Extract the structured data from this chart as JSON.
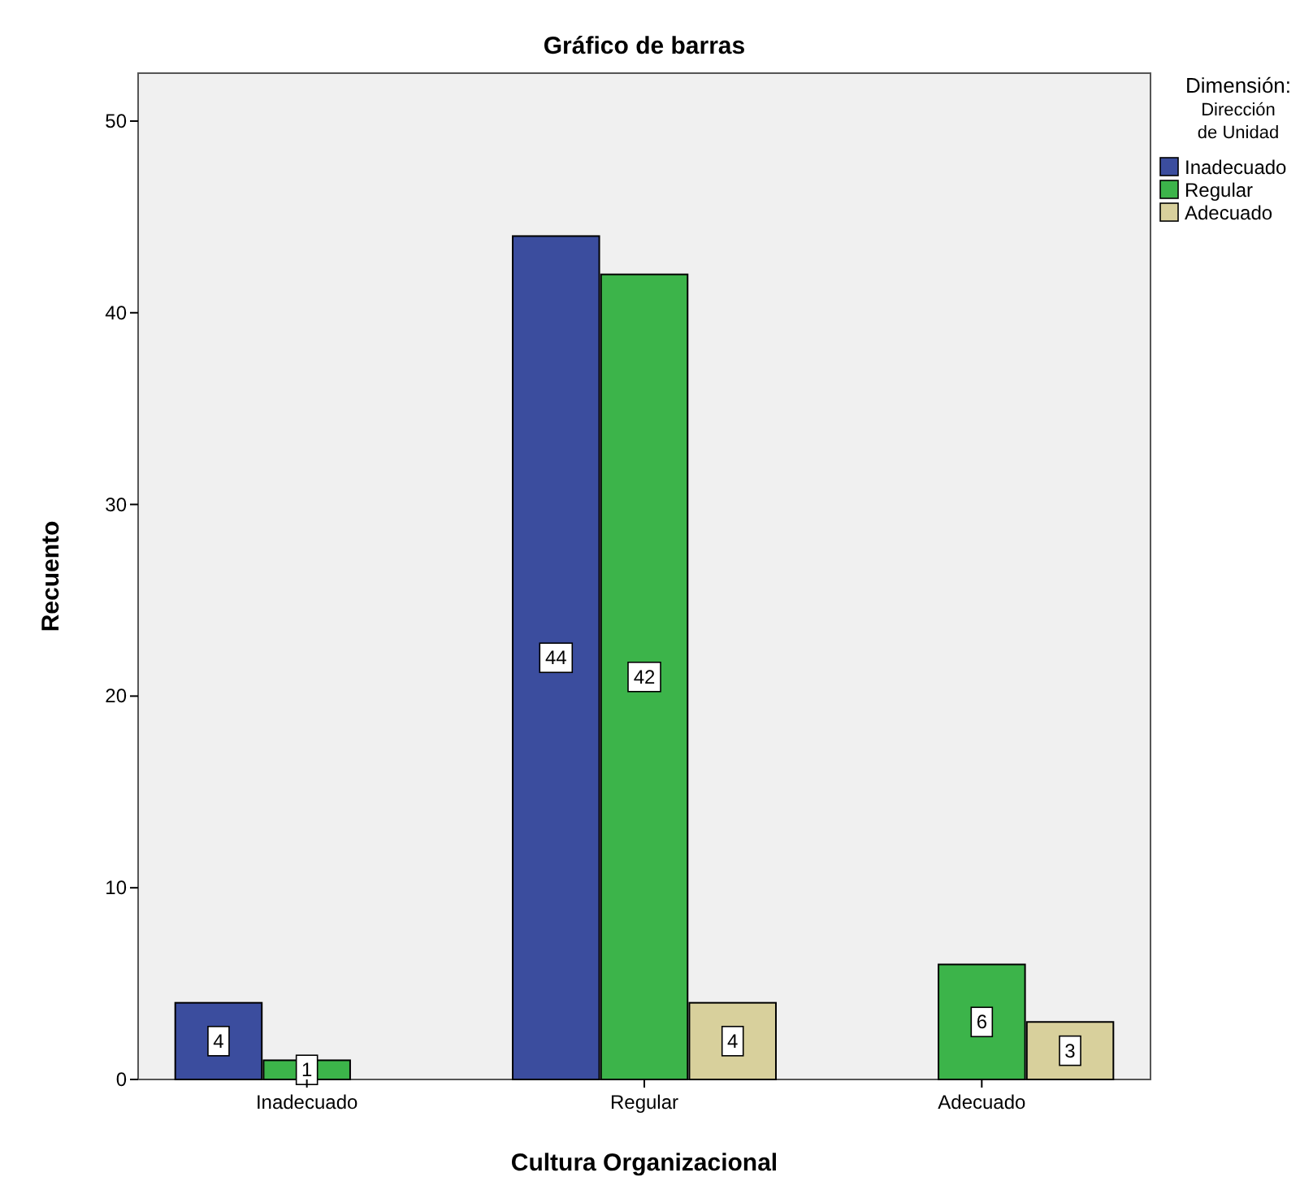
{
  "chart_data": {
    "type": "bar",
    "title": "Gráfico de barras",
    "xlabel": "Cultura Organizacional",
    "ylabel": "Recuento",
    "legend_title": "Dimensión: Dirección de Unidad",
    "categories": [
      "Inadecuado",
      "Regular",
      "Adecuado"
    ],
    "series": [
      {
        "name": "Inadecuado",
        "color": "#3b4d9e",
        "values": [
          4,
          44,
          null
        ]
      },
      {
        "name": "Regular",
        "color": "#3cb44a",
        "values": [
          1,
          42,
          6
        ]
      },
      {
        "name": "Adecuado",
        "color": "#d8d09c",
        "values": [
          null,
          4,
          3
        ]
      }
    ],
    "ylim": [
      0,
      52.5
    ],
    "yticks": [
      0,
      10,
      20,
      30,
      40,
      50
    ],
    "data_labels": true,
    "legend": "right",
    "grid": false
  }
}
